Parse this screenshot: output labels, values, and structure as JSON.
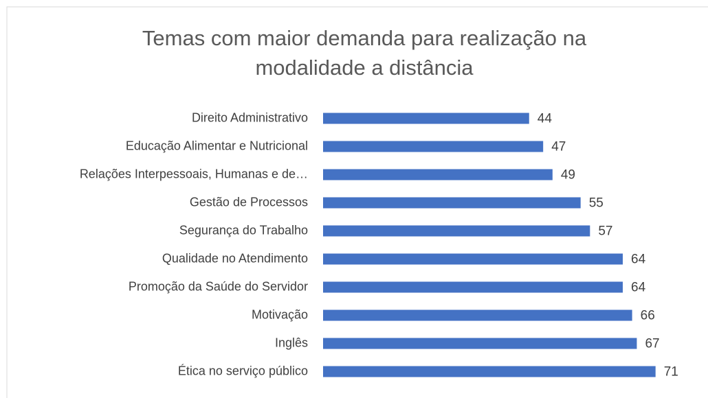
{
  "chart_data": {
    "type": "bar",
    "orientation": "horizontal",
    "title": [
      "Temas com maior demanda para realização na",
      "modalidade a distância"
    ],
    "categories": [
      "Direito Administrativo",
      "Educação Alimentar e Nutricional",
      "Relações Interpessoais, Humanas e de…",
      "Gestão de Processos",
      "Segurança do Trabalho",
      "Qualidade no Atendimento",
      "Promoção da Saúde do Servidor",
      "Motivação",
      "Inglês",
      "Ética no serviço público"
    ],
    "values": [
      44,
      47,
      49,
      55,
      57,
      64,
      64,
      66,
      67,
      71
    ],
    "color": "#4472c4",
    "xlim": [
      0,
      80
    ]
  }
}
